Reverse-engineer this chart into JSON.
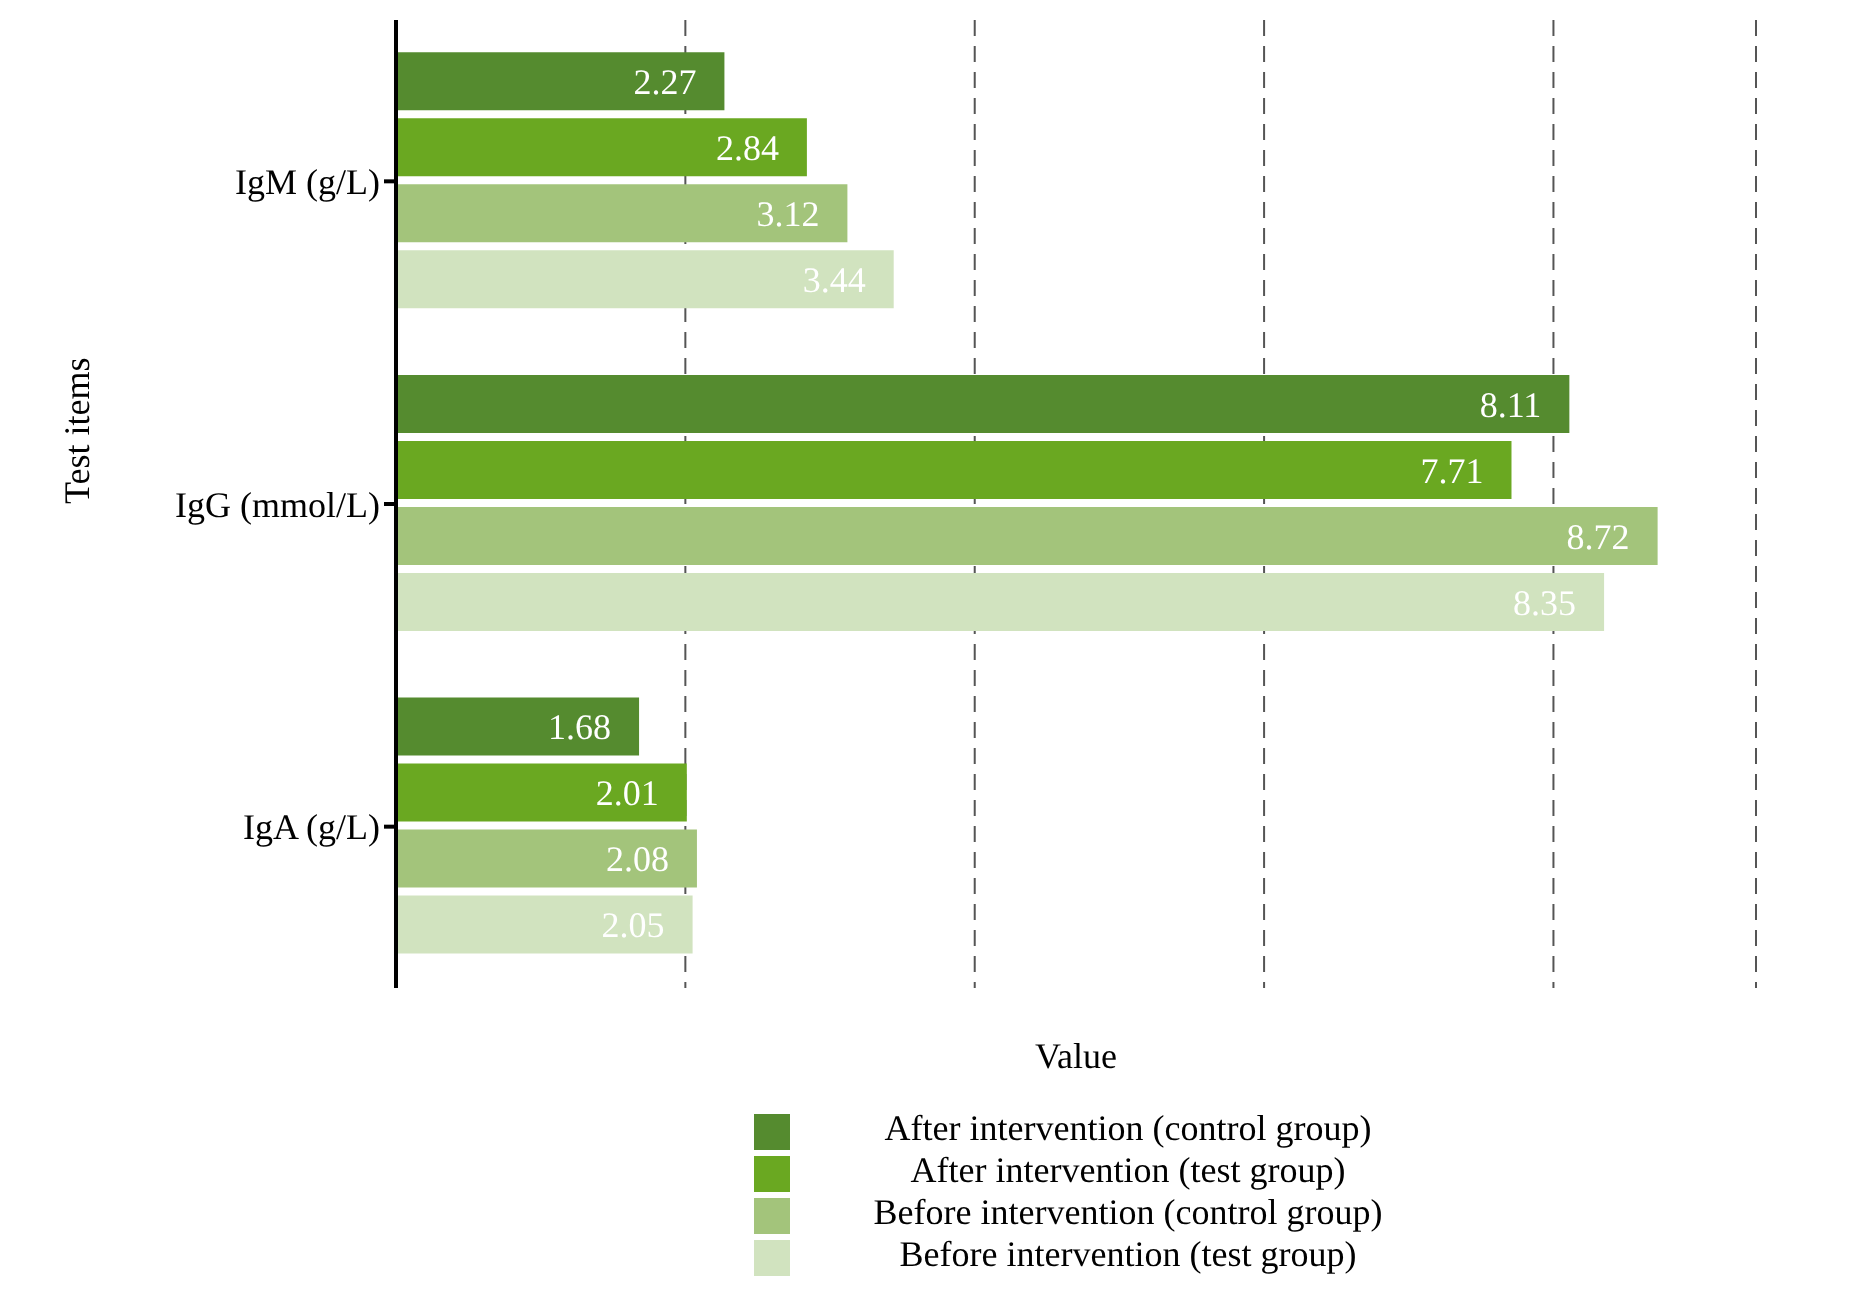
{
  "chart_data": {
    "type": "bar",
    "orientation": "horizontal",
    "xlabel": "Value",
    "ylabel": "Test items",
    "categories": [
      "IgM (g/L)",
      "IgG (mmol/L)",
      "IgA (g/L)"
    ],
    "series": [
      {
        "name": "After intervention (control group)",
        "color": "#558b2f",
        "values": [
          2.27,
          8.11,
          1.68
        ]
      },
      {
        "name": "After intervention (test group)",
        "color": "#6aa821",
        "values": [
          2.84,
          7.71,
          2.01
        ]
      },
      {
        "name": "Before intervention (control group)",
        "color": "#a3c47b",
        "values": [
          3.12,
          8.72,
          2.08
        ]
      },
      {
        "name": "Before intervention (test group)",
        "color": "#d1e3bf",
        "values": [
          3.44,
          8.35,
          2.05
        ]
      }
    ],
    "xlim": [
      0,
      9.4
    ],
    "xticks": [
      {
        "value": 2,
        "label": null
      },
      {
        "value": 4,
        "label": null
      },
      {
        "value": 6,
        "label": null
      },
      {
        "value": 8,
        "label": null
      }
    ],
    "tick_labels": "y",
    "grid": "x",
    "legend": "bottom",
    "data_labels": true
  }
}
